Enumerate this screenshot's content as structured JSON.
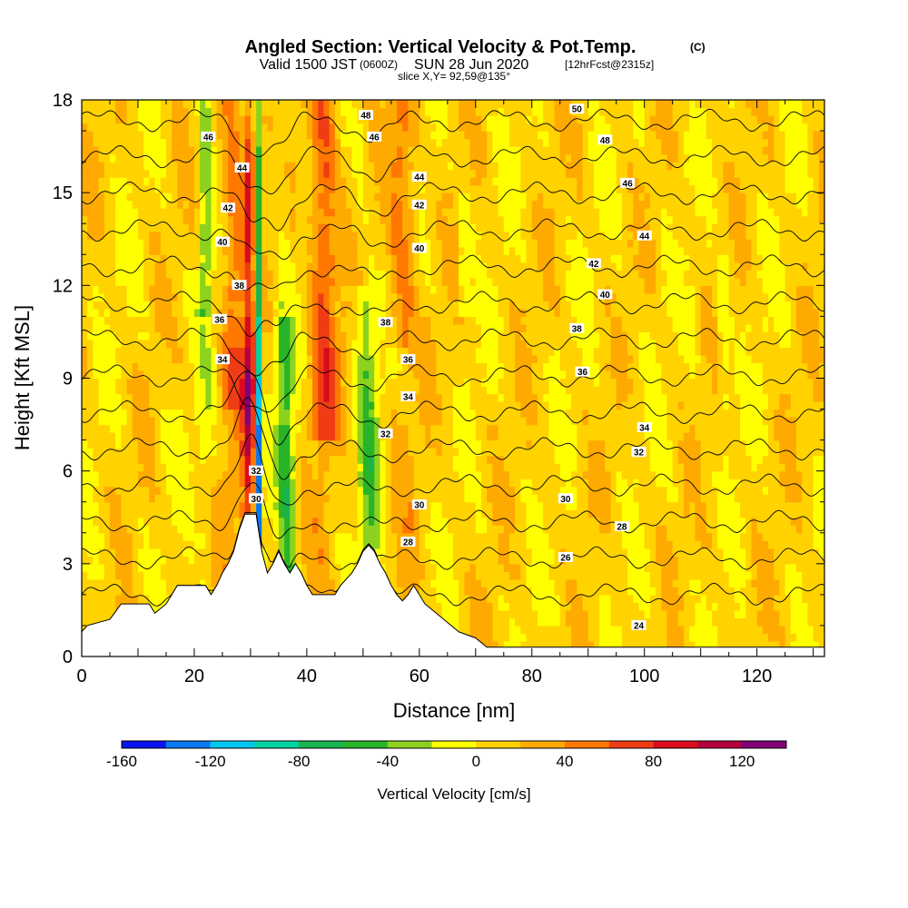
{
  "titles": {
    "main": "Angled Section: Vertical Velocity & Pot.Temp.",
    "main_units": "(C)",
    "valid_prefix": "Valid 1500 JST",
    "valid_utc": "(0600Z)",
    "valid_date": "SUN 28 Jun 2020",
    "forecast": "[12hrFcst@2315z]",
    "slice": "slice X,Y= 92,59@135°"
  },
  "chart_data": {
    "type": "heatmap",
    "title": "Angled Section: Vertical Velocity & Pot.Temp. (C)",
    "xlabel": "Distance [nm]",
    "ylabel": "Height [Kft MSL]",
    "xlim": [
      0,
      132
    ],
    "ylim": [
      0,
      18
    ],
    "x_ticks": [
      "0",
      "20",
      "40",
      "60",
      "80",
      "100",
      "120"
    ],
    "y_ticks": [
      "0",
      "3",
      "6",
      "9",
      "12",
      "15",
      "18"
    ],
    "colorbar": {
      "label": "Vertical Velocity [cm/s]",
      "tick_labels": [
        "-160",
        "-120",
        "-80",
        "-40",
        "0",
        "40",
        "80",
        "120"
      ],
      "levels": [
        -160,
        -140,
        -120,
        -100,
        -80,
        -60,
        -40,
        -20,
        0,
        20,
        40,
        60,
        80,
        100,
        120,
        140
      ],
      "colors": [
        "#0a14f0",
        "#0a78f0",
        "#00c8f0",
        "#00d2a0",
        "#19b450",
        "#28b428",
        "#8cd21e",
        "#ffff00",
        "#ffd200",
        "#ffaa00",
        "#ff7800",
        "#f03c14",
        "#dc0a1e",
        "#b4003c",
        "#820078"
      ]
    },
    "terrain_kft": [
      [
        0,
        0.8
      ],
      [
        1,
        1.0
      ],
      [
        5,
        1.2
      ],
      [
        7,
        1.7
      ],
      [
        12,
        1.7
      ],
      [
        13,
        1.4
      ],
      [
        15,
        1.7
      ],
      [
        16,
        2.0
      ],
      [
        17,
        2.3
      ],
      [
        22,
        2.3
      ],
      [
        23,
        2.0
      ],
      [
        24,
        2.3
      ],
      [
        25,
        2.7
      ],
      [
        26,
        3.0
      ],
      [
        27,
        3.4
      ],
      [
        28,
        4.1
      ],
      [
        29,
        4.6
      ],
      [
        31,
        4.6
      ],
      [
        32,
        3.4
      ],
      [
        33,
        2.7
      ],
      [
        34,
        3.0
      ],
      [
        35,
        3.4
      ],
      [
        36,
        3.0
      ],
      [
        37,
        2.7
      ],
      [
        38,
        3.0
      ],
      [
        39,
        2.7
      ],
      [
        40,
        2.3
      ],
      [
        41,
        2.0
      ],
      [
        45,
        2.0
      ],
      [
        46,
        2.3
      ],
      [
        48,
        2.7
      ],
      [
        49,
        3.0
      ],
      [
        50,
        3.4
      ],
      [
        51,
        3.6
      ],
      [
        52,
        3.4
      ],
      [
        53,
        3.0
      ],
      [
        54,
        2.7
      ],
      [
        55,
        2.3
      ],
      [
        56,
        2.0
      ],
      [
        57,
        1.8
      ],
      [
        58,
        2.0
      ],
      [
        59,
        2.3
      ],
      [
        60,
        2.0
      ],
      [
        61,
        1.7
      ],
      [
        63,
        1.4
      ],
      [
        65,
        1.1
      ],
      [
        67,
        0.8
      ],
      [
        70,
        0.6
      ],
      [
        72,
        0.3
      ],
      [
        132,
        0.3
      ]
    ],
    "updraft_axis": {
      "x_surface": 29.5,
      "x_top": 30.5,
      "max_cm_s": 120
    },
    "downdraft_axis": {
      "x_surface": 31.5,
      "x_top": 31.0,
      "min_cm_s": -160
    },
    "theta_contours_c": [
      24,
      26,
      28,
      30,
      32,
      34,
      36,
      38,
      40,
      42,
      44,
      46,
      48,
      50
    ],
    "theta_labels": [
      {
        "text": "46",
        "x": 22.5,
        "y": 16.8
      },
      {
        "text": "44",
        "x": 28.5,
        "y": 15.8
      },
      {
        "text": "42",
        "x": 26.0,
        "y": 14.5
      },
      {
        "text": "40",
        "x": 25.0,
        "y": 13.4
      },
      {
        "text": "38",
        "x": 28.0,
        "y": 12.0
      },
      {
        "text": "36",
        "x": 24.5,
        "y": 10.9
      },
      {
        "text": "34",
        "x": 25.0,
        "y": 9.6
      },
      {
        "text": "32",
        "x": 31.0,
        "y": 6.0
      },
      {
        "text": "30",
        "x": 31.0,
        "y": 5.1
      },
      {
        "text": "48",
        "x": 50.5,
        "y": 17.5
      },
      {
        "text": "46",
        "x": 52.0,
        "y": 16.8
      },
      {
        "text": "44",
        "x": 60.0,
        "y": 15.5
      },
      {
        "text": "42",
        "x": 60.0,
        "y": 14.6
      },
      {
        "text": "40",
        "x": 60.0,
        "y": 13.2
      },
      {
        "text": "38",
        "x": 54.0,
        "y": 10.8
      },
      {
        "text": "36",
        "x": 58.0,
        "y": 9.6
      },
      {
        "text": "34",
        "x": 58.0,
        "y": 8.4
      },
      {
        "text": "32",
        "x": 54.0,
        "y": 7.2
      },
      {
        "text": "30",
        "x": 60.0,
        "y": 4.9
      },
      {
        "text": "28",
        "x": 58.0,
        "y": 3.7
      },
      {
        "text": "26",
        "x": 86.0,
        "y": 3.2
      },
      {
        "text": "50",
        "x": 88.0,
        "y": 17.7
      },
      {
        "text": "48",
        "x": 93.0,
        "y": 16.7
      },
      {
        "text": "46",
        "x": 97.0,
        "y": 15.3
      },
      {
        "text": "44",
        "x": 100.0,
        "y": 13.6
      },
      {
        "text": "42",
        "x": 91.0,
        "y": 12.7
      },
      {
        "text": "40",
        "x": 93.0,
        "y": 11.7
      },
      {
        "text": "38",
        "x": 88.0,
        "y": 10.6
      },
      {
        "text": "36",
        "x": 89.0,
        "y": 9.2
      },
      {
        "text": "34",
        "x": 100.0,
        "y": 7.4
      },
      {
        "text": "32",
        "x": 99.0,
        "y": 6.6
      },
      {
        "text": "30",
        "x": 86.0,
        "y": 5.1
      },
      {
        "text": "28",
        "x": 96.0,
        "y": 4.2
      },
      {
        "text": "24",
        "x": 99.0,
        "y": 1.0
      }
    ]
  }
}
